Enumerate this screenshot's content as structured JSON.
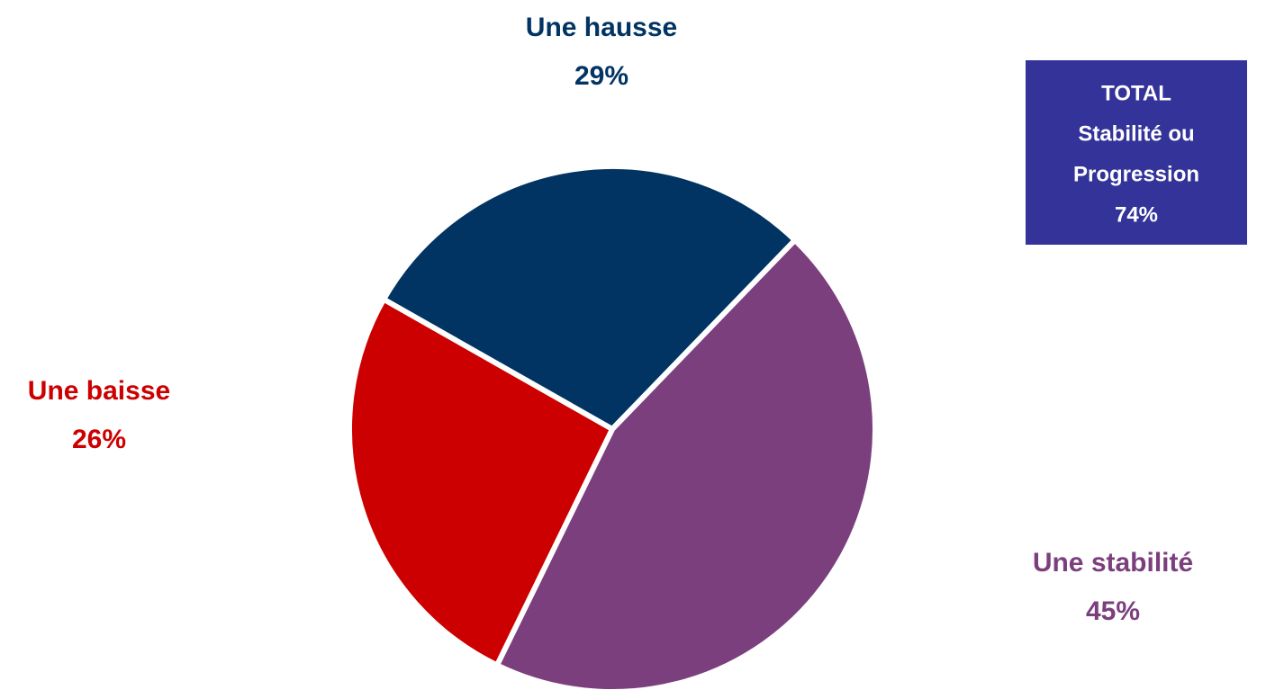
{
  "chart_data": {
    "type": "pie",
    "categories": [
      "Une hausse",
      "Une stabilité",
      "Une baisse"
    ],
    "values": [
      29,
      45,
      26
    ],
    "value_labels": [
      "29%",
      "45%",
      "26%"
    ],
    "colors": [
      "#013462",
      "#7b3f7e",
      "#cc0000"
    ],
    "annotation": {
      "lines": [
        "TOTAL",
        "Stabilité ou",
        "Progression",
        "74%"
      ],
      "color": "#333399"
    }
  }
}
